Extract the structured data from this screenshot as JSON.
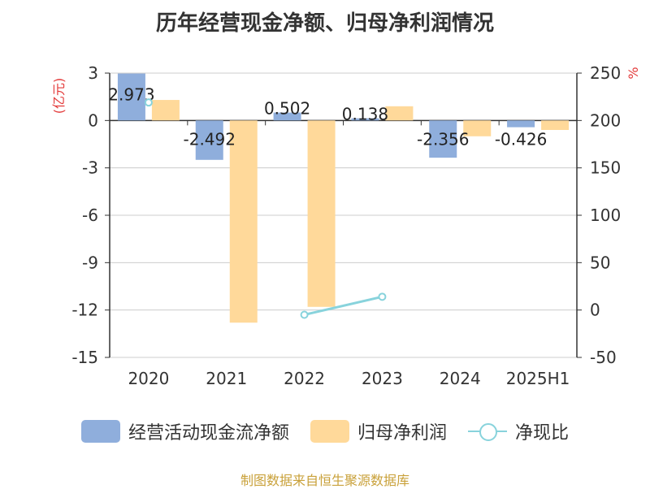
{
  "title": "历年经营现金净额、归母净利润情况",
  "source": "制图数据来自恒生聚源数据库",
  "colors": {
    "cash": "#8faedc",
    "profit": "#ffd99a",
    "ratio": "#88d3dc",
    "axis_label": "#e33b3b"
  },
  "chart_data": {
    "type": "bar",
    "categories": [
      "2020",
      "2021",
      "2022",
      "2023",
      "2024",
      "2025H1"
    ],
    "series": [
      {
        "name": "经营活动现金流净额",
        "values": [
          2.973,
          -2.492,
          0.502,
          0.138,
          -2.356,
          -0.426
        ],
        "axis": "left",
        "data_labels": [
          "2.973",
          "-2.492",
          "0.502",
          "0.138",
          "-2.356",
          "-0.426"
        ]
      },
      {
        "name": "归母净利润",
        "values": [
          1.3,
          -12.8,
          -11.8,
          0.9,
          -1.0,
          -0.6
        ],
        "axis": "left"
      },
      {
        "name": "净现比",
        "type": "line",
        "axis": "right",
        "values": [
          null,
          null,
          -5,
          14,
          null,
          null
        ],
        "first_point_value": 219,
        "first_point_index": 0
      }
    ],
    "left_axis": {
      "label": "(亿元)",
      "min": -15,
      "max": 3,
      "ticks": [
        3,
        0,
        -3,
        -6,
        -9,
        -12,
        -15
      ]
    },
    "right_axis": {
      "label": "%",
      "min": -50,
      "max": 250,
      "ticks": [
        250,
        200,
        150,
        100,
        50,
        0,
        -50
      ]
    },
    "legend": {
      "position": "bottom",
      "items": [
        "经营活动现金流净额",
        "归母净利润",
        "净现比"
      ]
    },
    "grid": true
  }
}
